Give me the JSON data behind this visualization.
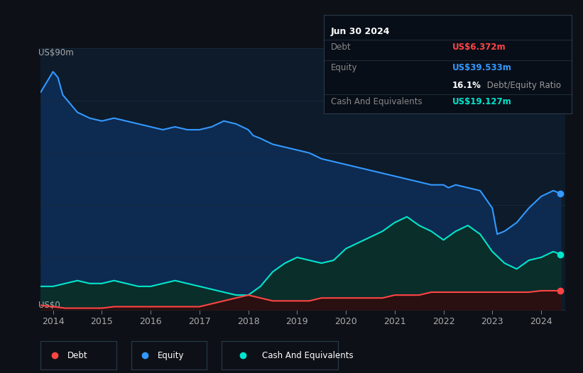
{
  "bg_color": "#0d1117",
  "plot_bg_color": "#0d1b2a",
  "grid_color": "#1a2c3d",
  "ylabel_top": "US$90m",
  "ylabel_bot": "US$0",
  "title_box": {
    "date": "Jun 30 2024",
    "debt_label": "Debt",
    "debt_value": "US$6.372m",
    "debt_color": "#ff4444",
    "equity_label": "Equity",
    "equity_value": "US$39.533m",
    "equity_color": "#3399ff",
    "ratio_bold": "16.1%",
    "ratio_text": " Debt/Equity Ratio",
    "ratio_bold_color": "#ffffff",
    "ratio_text_color": "#999999",
    "cash_label": "Cash And Equivalents",
    "cash_value": "US$19.127m",
    "cash_color": "#00e5cc",
    "label_color": "#888888",
    "box_bg": "#080e18",
    "box_border": "#2a3a4a"
  },
  "legend": [
    {
      "label": "Debt",
      "color": "#ff4444"
    },
    {
      "label": "Equity",
      "color": "#3399ff"
    },
    {
      "label": "Cash And Equivalents",
      "color": "#00e5cc"
    }
  ],
  "x_ticks": [
    2014,
    2015,
    2016,
    2017,
    2018,
    2019,
    2020,
    2021,
    2022,
    2023,
    2024
  ],
  "ylim": [
    0,
    90
  ],
  "equity_fill_color": "#0d2a50",
  "equity_line_color": "#3399ff",
  "cash_fill_color": "#0a2e2a",
  "cash_line_color": "#00e5cc",
  "debt_fill_color": "#2a1010",
  "debt_line_color": "#ff4444",
  "equity_data": {
    "x": [
      2013.75,
      2014.0,
      2014.1,
      2014.2,
      2014.35,
      2014.5,
      2014.75,
      2015.0,
      2015.25,
      2015.5,
      2015.75,
      2016.0,
      2016.25,
      2016.5,
      2016.75,
      2017.0,
      2017.25,
      2017.5,
      2017.75,
      2018.0,
      2018.1,
      2018.25,
      2018.5,
      2018.75,
      2019.0,
      2019.25,
      2019.5,
      2019.75,
      2020.0,
      2020.25,
      2020.5,
      2020.75,
      2021.0,
      2021.25,
      2021.5,
      2021.75,
      2022.0,
      2022.1,
      2022.25,
      2022.5,
      2022.75,
      2023.0,
      2023.1,
      2023.25,
      2023.5,
      2023.75,
      2024.0,
      2024.25,
      2024.4
    ],
    "y": [
      75,
      82,
      80,
      74,
      71,
      68,
      66,
      65,
      66,
      65,
      64,
      63,
      62,
      63,
      62,
      62,
      63,
      65,
      64,
      62,
      60,
      59,
      57,
      56,
      55,
      54,
      52,
      51,
      50,
      49,
      48,
      47,
      46,
      45,
      44,
      43,
      43,
      42,
      43,
      42,
      41,
      35,
      26,
      27,
      30,
      35,
      39,
      41,
      40
    ]
  },
  "cash_data": {
    "x": [
      2013.75,
      2014.0,
      2014.25,
      2014.5,
      2014.75,
      2015.0,
      2015.25,
      2015.5,
      2015.75,
      2016.0,
      2016.25,
      2016.5,
      2016.75,
      2017.0,
      2017.25,
      2017.5,
      2017.75,
      2018.0,
      2018.25,
      2018.5,
      2018.75,
      2019.0,
      2019.25,
      2019.5,
      2019.75,
      2020.0,
      2020.25,
      2020.5,
      2020.75,
      2021.0,
      2021.25,
      2021.5,
      2021.75,
      2022.0,
      2022.25,
      2022.5,
      2022.75,
      2023.0,
      2023.25,
      2023.5,
      2023.75,
      2024.0,
      2024.25,
      2024.4
    ],
    "y": [
      8,
      8,
      9,
      10,
      9,
      9,
      10,
      9,
      8,
      8,
      9,
      10,
      9,
      8,
      7,
      6,
      5,
      5,
      8,
      13,
      16,
      18,
      17,
      16,
      17,
      21,
      23,
      25,
      27,
      30,
      32,
      29,
      27,
      24,
      27,
      29,
      26,
      20,
      16,
      14,
      17,
      18,
      20,
      19
    ]
  },
  "debt_data": {
    "x": [
      2013.75,
      2014.0,
      2014.25,
      2014.5,
      2014.75,
      2015.0,
      2015.25,
      2015.5,
      2015.75,
      2016.0,
      2016.25,
      2016.5,
      2016.75,
      2017.0,
      2017.25,
      2017.5,
      2017.75,
      2018.0,
      2018.25,
      2018.5,
      2018.75,
      2019.0,
      2019.25,
      2019.5,
      2019.75,
      2020.0,
      2020.25,
      2020.5,
      2020.75,
      2021.0,
      2021.25,
      2021.5,
      2021.75,
      2022.0,
      2022.25,
      2022.5,
      2022.75,
      2023.0,
      2023.25,
      2023.5,
      2023.75,
      2024.0,
      2024.25,
      2024.4
    ],
    "y": [
      1.5,
      1,
      0.5,
      0.5,
      0.5,
      0.5,
      1,
      1,
      1,
      1,
      1,
      1,
      1,
      1,
      2,
      3,
      4,
      5,
      4,
      3,
      3,
      3,
      3,
      4,
      4,
      4,
      4,
      4,
      4,
      5,
      5,
      5,
      6,
      6,
      6,
      6,
      6,
      6,
      6,
      6,
      6,
      6.5,
      6.5,
      6.5
    ]
  }
}
